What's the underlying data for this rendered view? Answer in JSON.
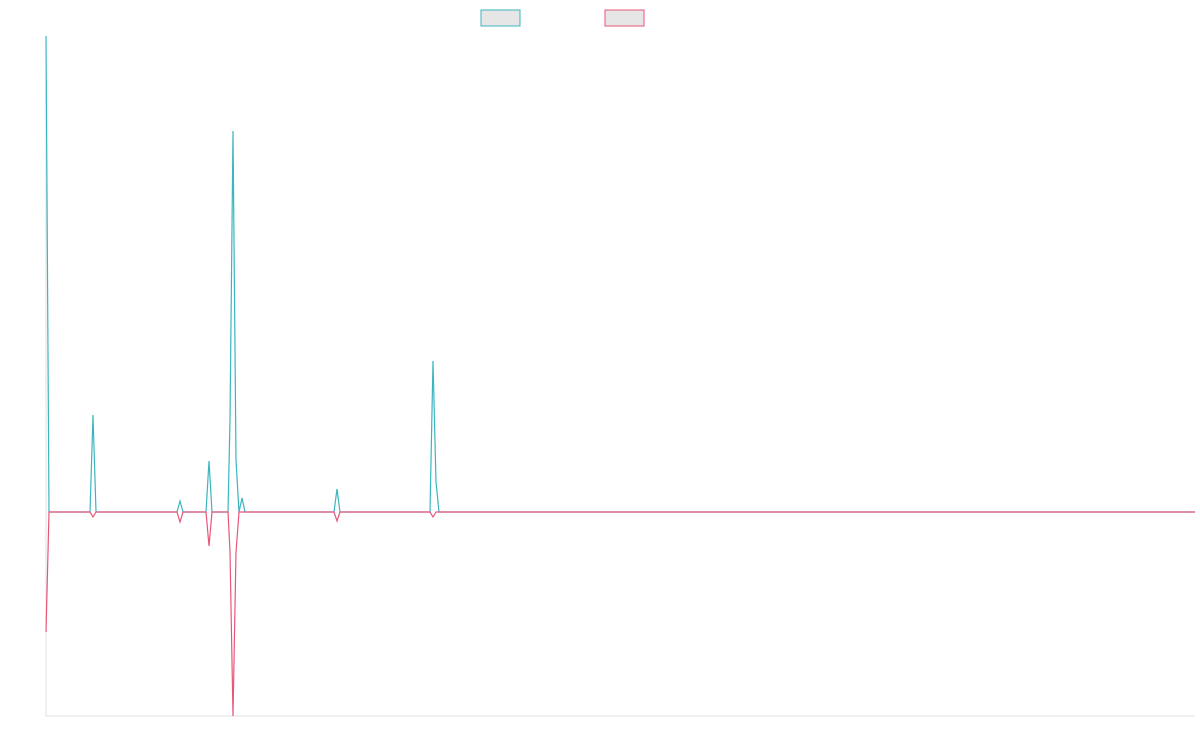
{
  "chart_data": {
    "type": "line",
    "xlim": [
      0,
      1149
    ],
    "ylim": [
      -2.04,
      4.76
    ],
    "series": [
      {
        "color": "#3bb5bf",
        "x": [
          0,
          3,
          44,
          47,
          50,
          131,
          134,
          137,
          160,
          163,
          166,
          182,
          184,
          187,
          190,
          193,
          196,
          199,
          288,
          291,
          294,
          384,
          387,
          390,
          393,
          1149
        ],
        "values": [
          4.76,
          0,
          0,
          0.97,
          0,
          0,
          0.11,
          0,
          0,
          0.51,
          0,
          0,
          0.92,
          3.81,
          0.52,
          0,
          0.14,
          0,
          0,
          0.23,
          0,
          0,
          1.51,
          0.3,
          0,
          0
        ]
      },
      {
        "color": "#e8557a",
        "x": [
          0,
          3,
          44,
          47,
          50,
          131,
          134,
          137,
          160,
          163,
          166,
          182,
          184,
          187,
          190,
          193,
          288,
          291,
          294,
          384,
          387,
          390,
          1149
        ],
        "values": [
          -1.2,
          0,
          0,
          -0.05,
          0,
          0,
          -0.1,
          0,
          0,
          -0.34,
          0,
          0,
          -0.4,
          -2.04,
          -0.4,
          0,
          0,
          -0.09,
          0,
          0,
          -0.05,
          0,
          0
        ]
      }
    ]
  }
}
